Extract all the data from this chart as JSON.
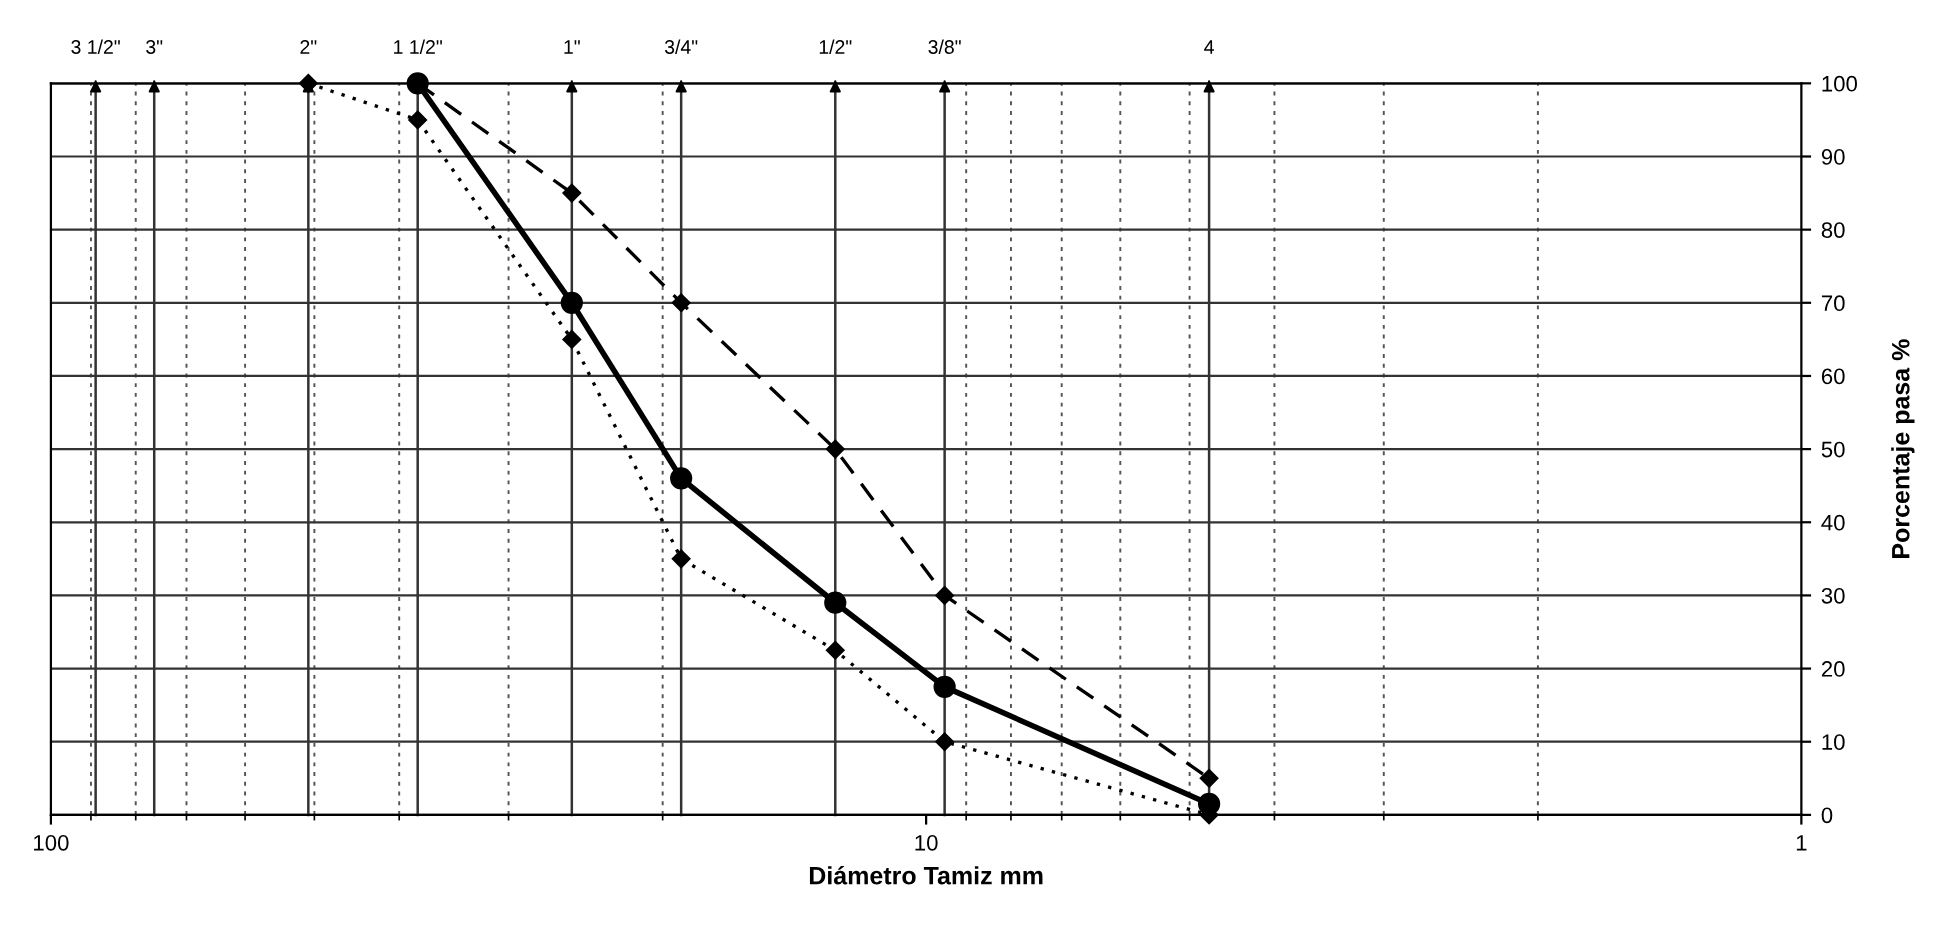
{
  "chart_data": {
    "type": "line",
    "xlabel": "Diámetro Tamiz mm",
    "ylabel": "Porcentaje pasa %",
    "log": "x",
    "grid": true,
    "xlim": [
      100,
      1
    ],
    "xticks": [
      100,
      10,
      1
    ],
    "ylim": [
      0,
      100
    ],
    "yticks": [
      0,
      10,
      20,
      30,
      40,
      50,
      60,
      70,
      80,
      90,
      100
    ],
    "annotations": [
      {
        "text": "3 1/2\"",
        "x": 88.9,
        "y": 100
      },
      {
        "text": "3\"",
        "x": 76.2,
        "y": 100
      },
      {
        "text": "2\"",
        "x": 50.8,
        "y": 100
      },
      {
        "text": "1 1/2\"",
        "x": 38.1,
        "y": 100
      },
      {
        "text": "1\"",
        "x": 25.4,
        "y": 100
      },
      {
        "text": "3/4\"",
        "x": 19.05,
        "y": 100
      },
      {
        "text": "1/2\"",
        "x": 12.7,
        "y": 100
      },
      {
        "text": "3/8\"",
        "x": 9.525,
        "y": 100
      },
      {
        "text": "4",
        "x": 4.75,
        "y": 100
      }
    ],
    "series": [
      {
        "color": "#000000",
        "line_style": "solid",
        "marker": "circle",
        "x": [
          38.1,
          25.4,
          19.05,
          12.7,
          9.525,
          4.75
        ],
        "values": [
          100,
          70,
          46,
          29,
          17.5,
          1.5
        ]
      },
      {
        "color": "#000000",
        "line_style": "dashed",
        "marker": "diamond",
        "x": [
          38.1,
          25.4,
          19.05,
          12.7,
          9.525,
          4.75
        ],
        "values": [
          100,
          85,
          70,
          50,
          30,
          5
        ]
      },
      {
        "color": "#000000",
        "line_style": "dotted",
        "marker": "diamond",
        "x": [
          50.8,
          38.1,
          25.4,
          19.05,
          12.7,
          9.525,
          4.75
        ],
        "values": [
          100,
          95,
          65,
          35,
          22.5,
          10,
          0
        ]
      }
    ]
  }
}
